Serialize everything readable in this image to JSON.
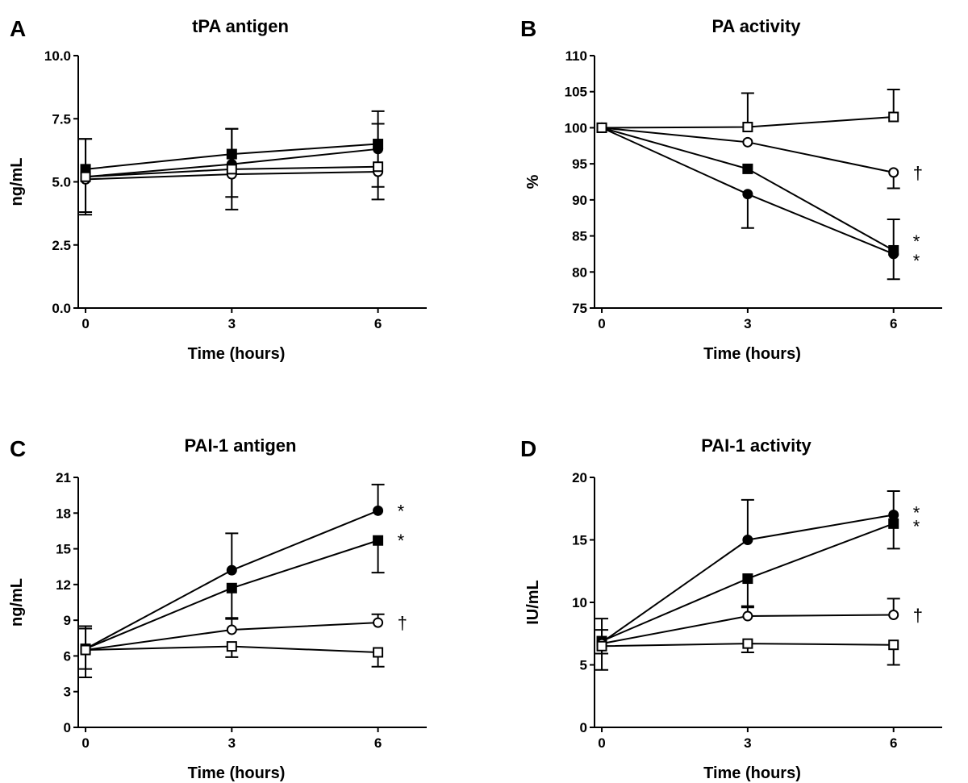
{
  "chart_data": [
    {
      "type": "line",
      "letter": "A",
      "title": "tPA antigen",
      "xlabel": "Time (hours)",
      "ylabel": "ng/mL",
      "x": [
        0,
        3,
        6
      ],
      "xticks": [
        "0",
        "3",
        "6"
      ],
      "xlim": [
        -0.15,
        7
      ],
      "ylim": [
        0,
        10
      ],
      "yticks": [
        "0.0",
        "2.5",
        "5.0",
        "7.5",
        "10.0"
      ],
      "grid": false,
      "series": [
        {
          "marker": "circle-filled",
          "values": [
            5.2,
            5.7,
            6.3
          ],
          "err": [
            1.5,
            1.3,
            1.5
          ],
          "err_dir": "down"
        },
        {
          "marker": "square-filled",
          "values": [
            5.5,
            6.1,
            6.5
          ],
          "err": [
            1.2,
            1.0,
            1.3
          ],
          "err_dir": "up"
        },
        {
          "marker": "circle-open",
          "values": [
            5.1,
            5.3,
            5.4
          ],
          "err": [
            1.3,
            1.4,
            1.1
          ],
          "err_dir": "down"
        },
        {
          "marker": "square-open",
          "values": [
            5.2,
            5.5,
            5.6
          ],
          "err": [
            1.5,
            1.6,
            1.7
          ],
          "err_dir": "up"
        }
      ],
      "annotations": []
    },
    {
      "type": "line",
      "letter": "B",
      "title": "PA activity",
      "xlabel": "Time (hours)",
      "ylabel": "%",
      "x": [
        0,
        3,
        6
      ],
      "xticks": [
        "0",
        "3",
        "6"
      ],
      "xlim": [
        -0.15,
        7
      ],
      "ylim": [
        75,
        110
      ],
      "yticks": [
        "75",
        "80",
        "85",
        "90",
        "95",
        "100",
        "105",
        "110"
      ],
      "grid": false,
      "series": [
        {
          "marker": "circle-filled",
          "values": [
            100,
            90.8,
            82.5
          ],
          "err": [
            0,
            4.7,
            3.5
          ],
          "err_dir": "down"
        },
        {
          "marker": "square-filled",
          "values": [
            100,
            94.3,
            83.0
          ],
          "err": [
            0,
            0,
            4.3
          ],
          "err_dir": "up"
        },
        {
          "marker": "circle-open",
          "values": [
            100,
            98.0,
            93.8
          ],
          "err": [
            0,
            0,
            2.2
          ],
          "err_dir": "down"
        },
        {
          "marker": "square-open",
          "values": [
            100,
            100.1,
            101.5
          ],
          "err": [
            0,
            4.7,
            3.8
          ],
          "err_dir": "up"
        }
      ],
      "annotations": [
        {
          "text": "†",
          "x": 6,
          "y": 93.8
        },
        {
          "text": "*",
          "x": 6,
          "y": 84.3
        },
        {
          "text": "*",
          "x": 6,
          "y": 81.6
        }
      ]
    },
    {
      "type": "line",
      "letter": "C",
      "title": "PAI-1 antigen",
      "xlabel": "Time (hours)",
      "ylabel": "ng/mL",
      "x": [
        0,
        3,
        6
      ],
      "xticks": [
        "0",
        "3",
        "6"
      ],
      "xlim": [
        -0.15,
        7
      ],
      "ylim": [
        0,
        21
      ],
      "yticks": [
        "0",
        "3",
        "6",
        "9",
        "12",
        "15",
        "18",
        "21"
      ],
      "grid": false,
      "series": [
        {
          "marker": "circle-filled",
          "values": [
            6.6,
            13.2,
            18.2
          ],
          "err": [
            1.7,
            3.1,
            2.2
          ],
          "err_dir": "up"
        },
        {
          "marker": "square-filled",
          "values": [
            6.6,
            11.7,
            15.7
          ],
          "err": [
            1.7,
            2.6,
            2.7
          ],
          "err_dir": "down"
        },
        {
          "marker": "circle-open",
          "values": [
            6.5,
            8.2,
            8.8
          ],
          "err": [
            2.0,
            1.0,
            0.7
          ],
          "err_dir": "up"
        },
        {
          "marker": "square-open",
          "values": [
            6.5,
            6.8,
            6.3
          ],
          "err": [
            2.3,
            0.9,
            1.2
          ],
          "err_dir": "down"
        }
      ],
      "annotations": [
        {
          "text": "*",
          "x": 6,
          "y": 18.2
        },
        {
          "text": "*",
          "x": 6,
          "y": 15.7
        },
        {
          "text": "†",
          "x": 6,
          "y": 8.8
        }
      ]
    },
    {
      "type": "line",
      "letter": "D",
      "title": "PAI-1 activity",
      "xlabel": "Time (hours)",
      "ylabel": "IU/mL",
      "x": [
        0,
        3,
        6
      ],
      "xticks": [
        "0",
        "3",
        "6"
      ],
      "xlim": [
        -0.15,
        7
      ],
      "ylim": [
        0,
        20
      ],
      "yticks": [
        "0",
        "5",
        "10",
        "15",
        "20"
      ],
      "grid": false,
      "series": [
        {
          "marker": "circle-filled",
          "values": [
            6.8,
            15.0,
            17.0
          ],
          "err": [
            1.0,
            3.2,
            1.9
          ],
          "err_dir": "up"
        },
        {
          "marker": "square-filled",
          "values": [
            6.9,
            11.9,
            16.3
          ],
          "err": [
            1.0,
            2.3,
            2.0
          ],
          "err_dir": "down"
        },
        {
          "marker": "circle-open",
          "values": [
            6.7,
            8.9,
            9.0
          ],
          "err": [
            2.0,
            0.8,
            1.3
          ],
          "err_dir": "up"
        },
        {
          "marker": "square-open",
          "values": [
            6.5,
            6.7,
            6.6
          ],
          "err": [
            1.9,
            0.7,
            1.6
          ],
          "err_dir": "down"
        }
      ],
      "annotations": [
        {
          "text": "*",
          "x": 6,
          "y": 17.2
        },
        {
          "text": "*",
          "x": 6,
          "y": 16.1
        },
        {
          "text": "†",
          "x": 6,
          "y": 9.0
        }
      ]
    }
  ]
}
